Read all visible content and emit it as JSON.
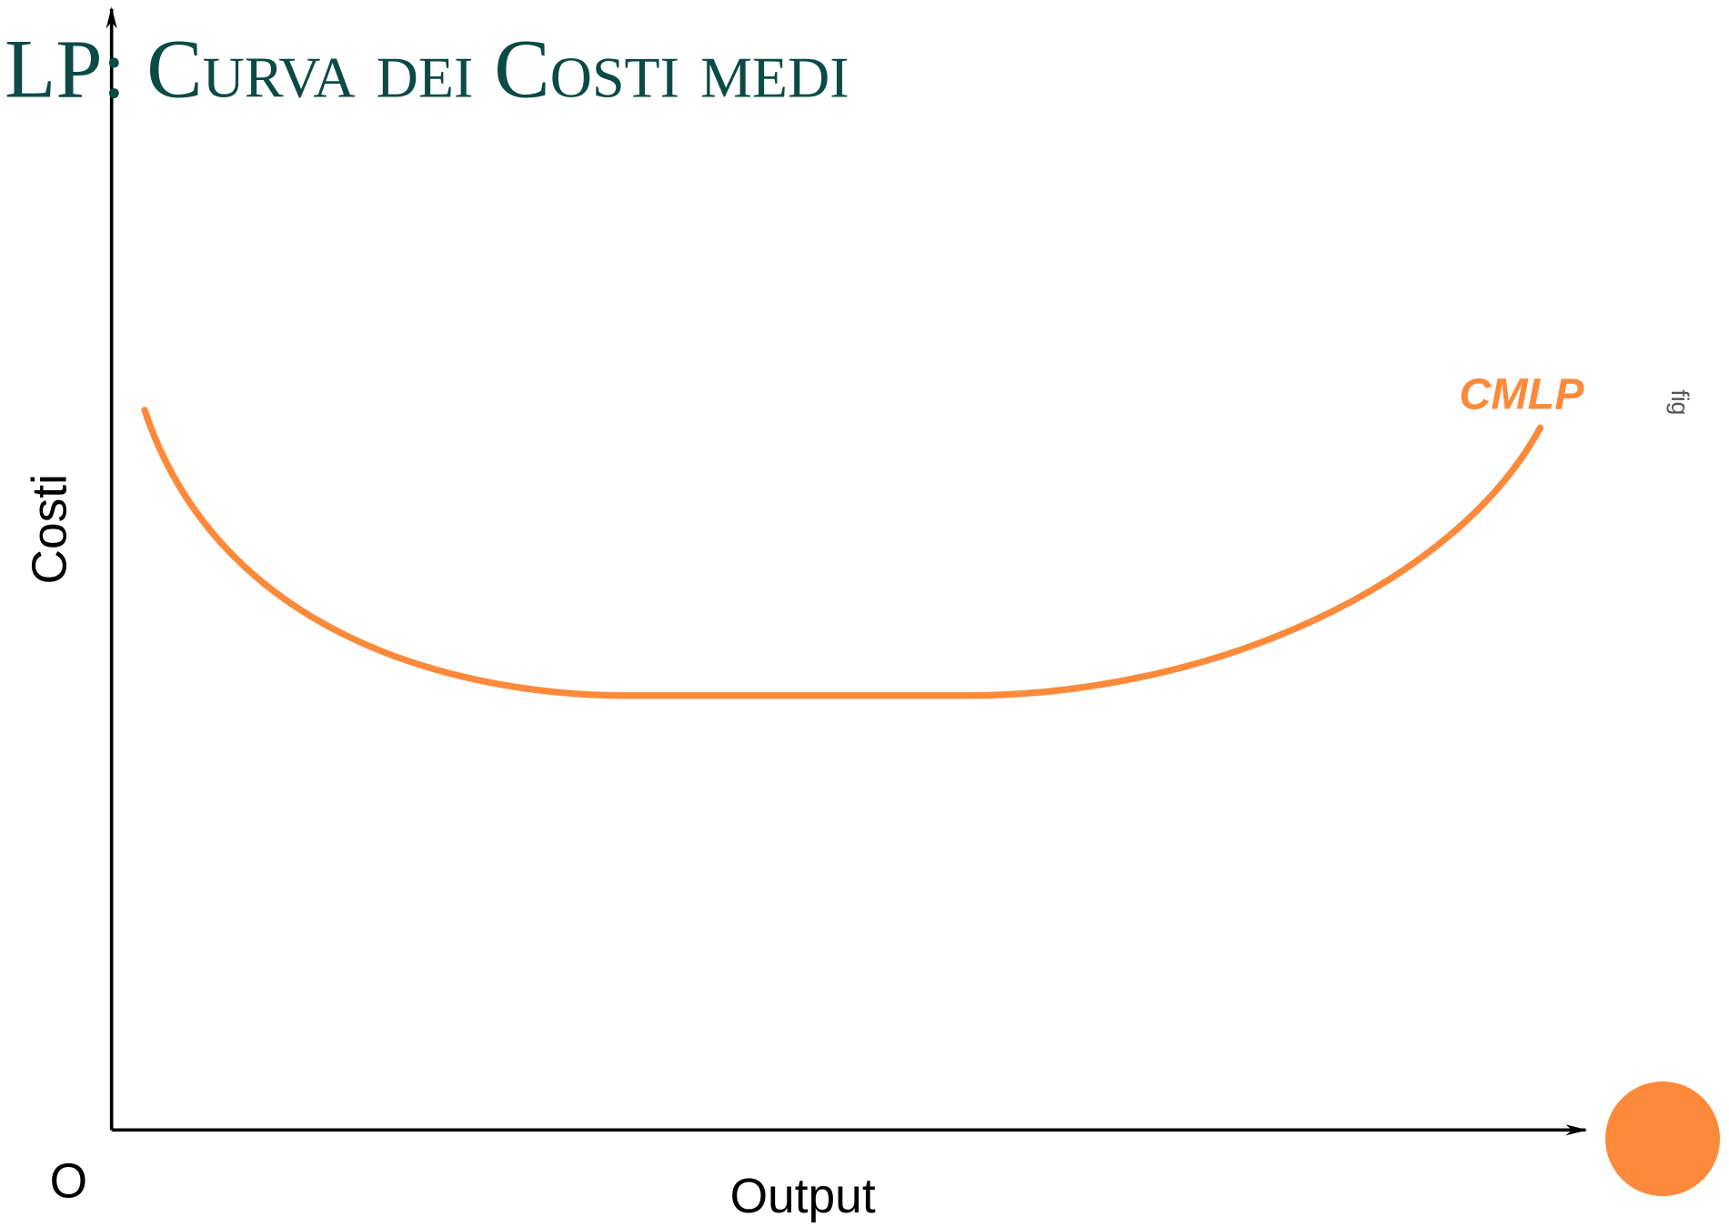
{
  "title": "LP: Curva dei Costi medi",
  "diagram": {
    "y_axis_label": "Costi",
    "x_axis_label": "Output",
    "origin_label": "O",
    "curve_label": "CMLP"
  },
  "footer": {
    "tag": "fig"
  }
}
